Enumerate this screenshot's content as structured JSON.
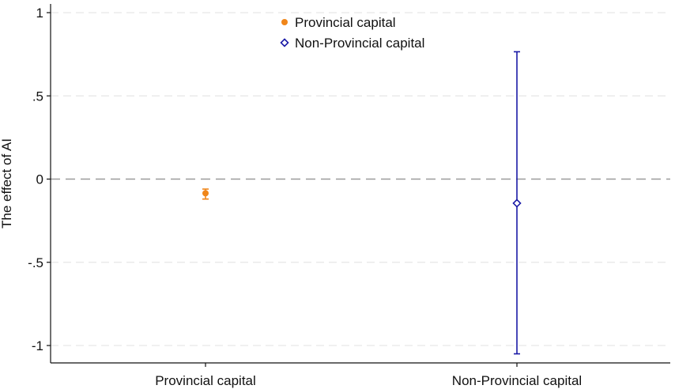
{
  "chart_data": {
    "type": "scatter",
    "ylabel": "The effect of AI",
    "ylim": [
      -1.1,
      1.05
    ],
    "yticks": [
      {
        "value": 1,
        "label": "1"
      },
      {
        "value": 0.5,
        "label": ".5"
      },
      {
        "value": 0,
        "label": "0"
      },
      {
        "value": -0.5,
        "label": "-.5"
      },
      {
        "value": -1,
        "label": "-1"
      }
    ],
    "categories": [
      "Provincial capital",
      "Non-Provincial capital"
    ],
    "reference_line": 0,
    "grid": true,
    "legend_position": "top-center",
    "series": [
      {
        "name": "Provincial capital",
        "marker": "filled-circle",
        "color": "#f0861a",
        "category": "Provincial capital",
        "estimate": -0.085,
        "ci_low": -0.12,
        "ci_high": -0.06
      },
      {
        "name": "Non-Provincial capital",
        "marker": "hollow-diamond",
        "color": "#1a1aa6",
        "category": "Non-Provincial capital",
        "estimate": -0.145,
        "ci_low": -1.05,
        "ci_high": 0.765
      }
    ]
  }
}
